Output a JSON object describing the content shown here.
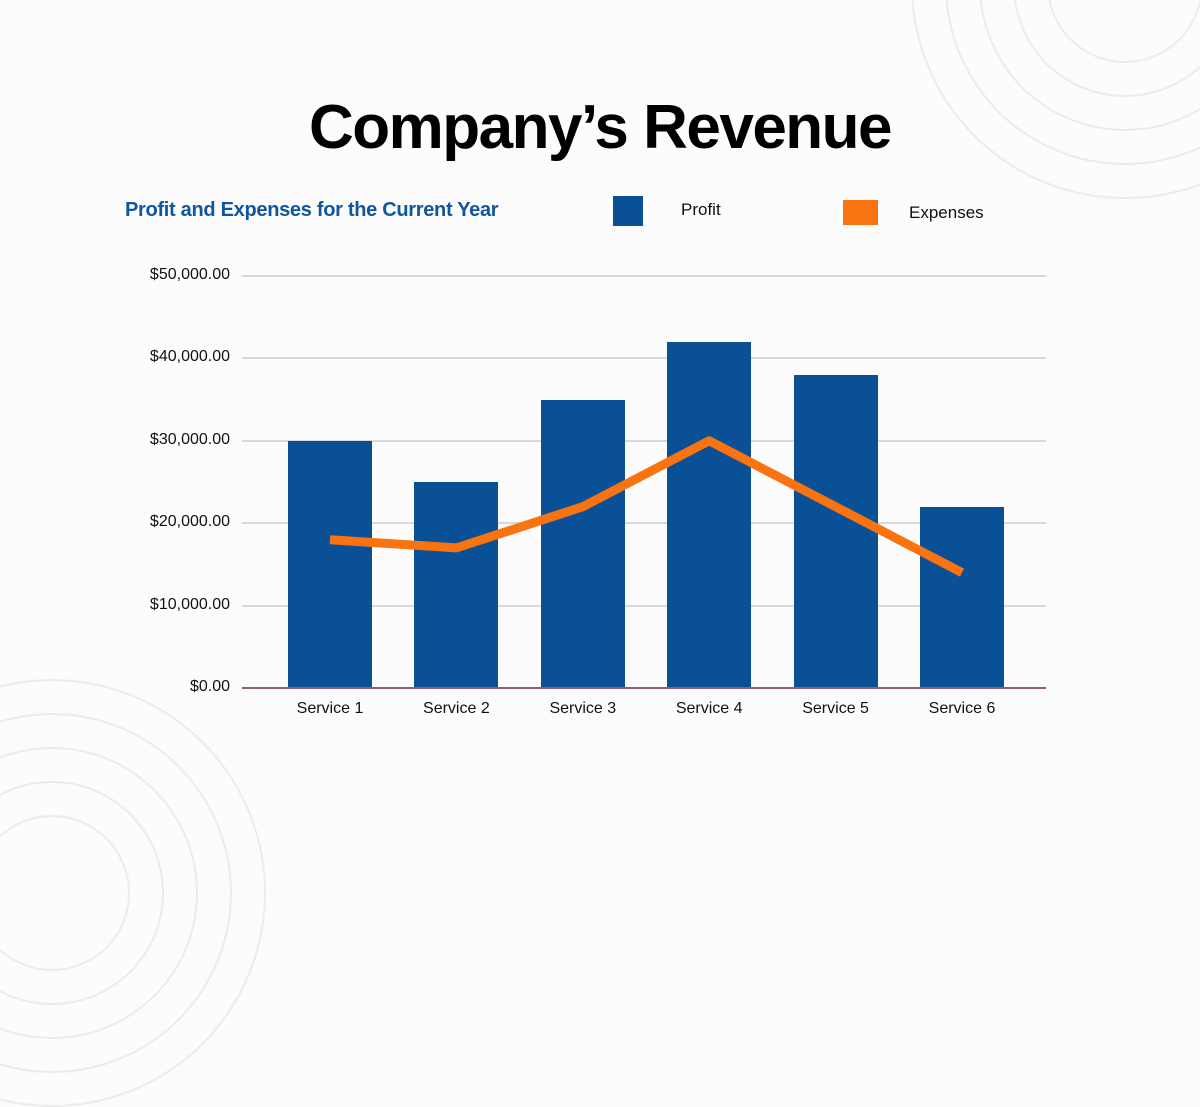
{
  "title": "Company’s Revenue",
  "subtitle": "Profit and Expenses for the Current Year",
  "legend": {
    "position": "top",
    "profit_label": "Profit",
    "expenses_label": "Expenses"
  },
  "colors": {
    "profit_bar": "#0A5096",
    "expenses_line": "#F97311",
    "subtitle_text": "#10569E",
    "axis_baseline": "#8E5F69",
    "gridline": "#D9D9D9",
    "background": "#fcfcfc"
  },
  "chart_data": {
    "type": "bar",
    "title": "Profit and Expenses for the Current Year",
    "categories": [
      "Service 1",
      "Service 2",
      "Service 3",
      "Service 4",
      "Service 5",
      "Service 6"
    ],
    "series": [
      {
        "name": "Profit",
        "type": "bar",
        "color": "#0A5096",
        "values": [
          30000,
          25000,
          35000,
          42000,
          38000,
          22000
        ]
      },
      {
        "name": "Expenses",
        "type": "line",
        "color": "#F97311",
        "values": [
          18000,
          17000,
          22000,
          30000,
          22000,
          14000
        ]
      }
    ],
    "xlabel": "",
    "ylabel": "",
    "ylim": [
      0,
      50000
    ],
    "grid": "horizontal",
    "legend_position": "top",
    "y_ticks": [
      {
        "value": 50000,
        "label": "$50,000.00"
      },
      {
        "value": 40000,
        "label": "$40,000.00"
      },
      {
        "value": 30000,
        "label": "$30,000.00"
      },
      {
        "value": 20000,
        "label": "$20,000.00"
      },
      {
        "value": 10000,
        "label": "$10,000.00"
      },
      {
        "value": 0,
        "label": "$0.00"
      }
    ]
  }
}
